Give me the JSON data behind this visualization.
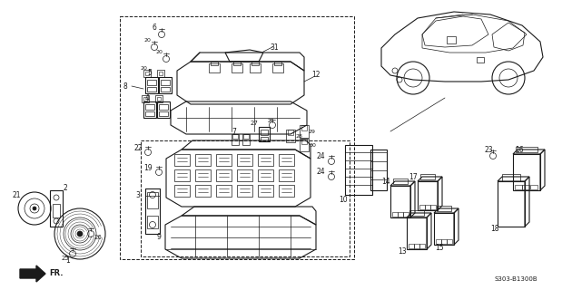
{
  "bg_color": "#ffffff",
  "line_color": "#1a1a1a",
  "fig_width": 6.3,
  "fig_height": 3.2,
  "dpi": 100,
  "diagram_code": "S303-B1300B",
  "fr_label": "FR."
}
